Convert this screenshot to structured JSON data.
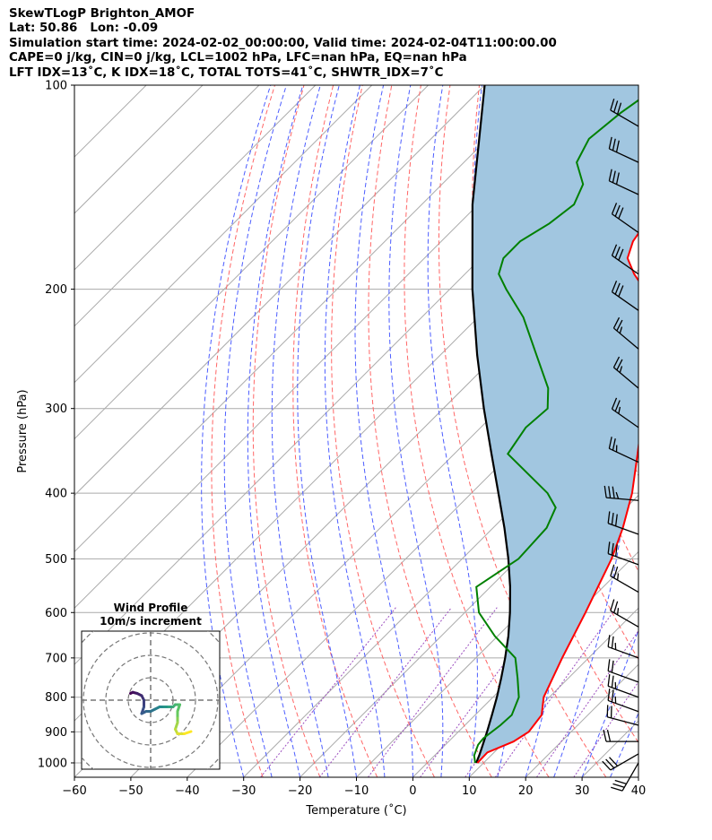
{
  "header": {
    "lines": [
      "SkewTLogP Brighton_AMOF",
      "Lat: 50.86   Lon: -0.09",
      "Simulation start time: 2024-02-02_00:00:00, Valid time: 2024-02-04T11:00:00.00",
      "CAPE=0 j/kg, CIN=0 j/kg, LCL=1002 hPa, LFC=nan hPa, EQ=nan hPa",
      "LFT IDX=13˚C, K IDX=18˚C, TOTAL TOTS=41˚C, SHWTR_IDX=7˚C"
    ]
  },
  "colors": {
    "temperature": "#ff0000",
    "dewpoint": "#008000",
    "parcel": "#000000",
    "cape_fill": "#a1c6e0",
    "dry_adiabats": "#ff6666",
    "moist_adiabats": "#4c5dff",
    "mixing_ratio": "#9b4dbf",
    "isotherms": "#aaaaaa",
    "isobars": "#aaaaaa"
  },
  "chart_data": {
    "type": "skew-t log-p",
    "xlabel": "Temperature (˚C)",
    "ylabel": "Pressure (hPa)",
    "xlim": [
      -60,
      40
    ],
    "ylim": [
      1050,
      100
    ],
    "y_scale": "log",
    "x_ticks": [
      "−60",
      "−50",
      "−40",
      "−30",
      "−20",
      "−10",
      "0",
      "10",
      "20",
      "30",
      "40"
    ],
    "y_ticks": [
      "100",
      "200",
      "300",
      "400",
      "500",
      "600",
      "700",
      "800",
      "900",
      "1000"
    ],
    "grid": true,
    "temperature_profile": [
      [
        1000,
        8.9
      ],
      [
        965,
        8.8
      ],
      [
        930,
        11.5
      ],
      [
        900,
        12.5
      ],
      [
        850,
        11.8
      ],
      [
        800,
        9.0
      ],
      [
        700,
        5.3
      ],
      [
        600,
        1.4
      ],
      [
        500,
        -3.5
      ],
      [
        450,
        -7.0
      ],
      [
        400,
        -11.5
      ],
      [
        350,
        -17.5
      ],
      [
        300,
        -24.5
      ],
      [
        250,
        -33.5
      ],
      [
        220,
        -40.0
      ],
      [
        200,
        -45.5
      ],
      [
        190,
        -50.0
      ],
      [
        180,
        -54.0
      ],
      [
        170,
        -56.0
      ],
      [
        160,
        -57.0
      ],
      [
        150,
        -57.0
      ],
      [
        140,
        -58.0
      ],
      [
        130,
        -59.0
      ],
      [
        115,
        -59.0
      ],
      [
        100,
        -61.0
      ]
    ],
    "dewpoint_profile": [
      [
        1000,
        8.5
      ],
      [
        975,
        7.0
      ],
      [
        940,
        5.8
      ],
      [
        920,
        5.6
      ],
      [
        880,
        6.3
      ],
      [
        850,
        6.5
      ],
      [
        800,
        4.6
      ],
      [
        750,
        1.0
      ],
      [
        700,
        -3.0
      ],
      [
        650,
        -10.5
      ],
      [
        600,
        -17.5
      ],
      [
        550,
        -22.5
      ],
      [
        500,
        -20.0
      ],
      [
        450,
        -20.5
      ],
      [
        420,
        -22.5
      ],
      [
        400,
        -26.5
      ],
      [
        350,
        -40.5
      ],
      [
        320,
        -42.0
      ],
      [
        300,
        -41.5
      ],
      [
        280,
        -45.0
      ],
      [
        250,
        -53.0
      ],
      [
        220,
        -62.0
      ],
      [
        200,
        -70.0
      ],
      [
        190,
        -74.0
      ],
      [
        180,
        -76.0
      ],
      [
        170,
        -76.0
      ],
      [
        160,
        -74.0
      ],
      [
        150,
        -73.0
      ],
      [
        140,
        -75.0
      ],
      [
        130,
        -80.0
      ],
      [
        120,
        -82.0
      ],
      [
        110,
        -81.0
      ],
      [
        100,
        -79.0
      ]
    ],
    "parcel_profile": [
      [
        1000,
        8.7
      ],
      [
        975,
        7.9
      ],
      [
        950,
        7.0
      ],
      [
        900,
        5.1
      ],
      [
        850,
        3.0
      ],
      [
        800,
        0.7
      ],
      [
        750,
        -1.9
      ],
      [
        700,
        -4.8
      ],
      [
        650,
        -8.1
      ],
      [
        600,
        -12.0
      ],
      [
        550,
        -16.5
      ],
      [
        500,
        -21.8
      ],
      [
        450,
        -28.0
      ],
      [
        400,
        -35.2
      ],
      [
        350,
        -43.4
      ],
      [
        300,
        -52.8
      ],
      [
        250,
        -63.5
      ],
      [
        200,
        -76.0
      ],
      [
        150,
        -91.0
      ],
      [
        100,
        -110.0
      ]
    ],
    "wind_barbs": [
      {
        "p": 1000,
        "spd_kt": 30,
        "dir": 210
      },
      {
        "p": 970,
        "spd_kt": 30,
        "dir": 240
      },
      {
        "p": 930,
        "spd_kt": 20,
        "dir": 270
      },
      {
        "p": 880,
        "spd_kt": 20,
        "dir": 285
      },
      {
        "p": 840,
        "spd_kt": 25,
        "dir": 290
      },
      {
        "p": 800,
        "spd_kt": 25,
        "dir": 290
      },
      {
        "p": 760,
        "spd_kt": 20,
        "dir": 290
      },
      {
        "p": 700,
        "spd_kt": 25,
        "dir": 290
      },
      {
        "p": 630,
        "spd_kt": 25,
        "dir": 300
      },
      {
        "p": 560,
        "spd_kt": 25,
        "dir": 300
      },
      {
        "p": 510,
        "spd_kt": 30,
        "dir": 290
      },
      {
        "p": 460,
        "spd_kt": 30,
        "dir": 290
      },
      {
        "p": 410,
        "spd_kt": 35,
        "dir": 275
      },
      {
        "p": 360,
        "spd_kt": 25,
        "dir": 295
      },
      {
        "p": 320,
        "spd_kt": 25,
        "dir": 305
      },
      {
        "p": 280,
        "spd_kt": 25,
        "dir": 310
      },
      {
        "p": 245,
        "spd_kt": 25,
        "dir": 310
      },
      {
        "p": 215,
        "spd_kt": 30,
        "dir": 305
      },
      {
        "p": 190,
        "spd_kt": 30,
        "dir": 305
      },
      {
        "p": 165,
        "spd_kt": 30,
        "dir": 305
      },
      {
        "p": 145,
        "spd_kt": 30,
        "dir": 295
      },
      {
        "p": 130,
        "spd_kt": 30,
        "dir": 295
      },
      {
        "p": 115,
        "spd_kt": 30,
        "dir": 300
      }
    ],
    "hodograph": {
      "title": "Wind Profile",
      "subtitle": "10m/s increment",
      "ring_step_ms": 10,
      "points_uv": [
        [
          -9,
          3
        ],
        [
          -8,
          3.5
        ],
        [
          -6,
          3
        ],
        [
          -4,
          2
        ],
        [
          -3,
          0
        ],
        [
          -3,
          -3
        ],
        [
          -4,
          -6
        ],
        [
          -2,
          -5
        ],
        [
          0,
          -5
        ],
        [
          2,
          -4
        ],
        [
          4,
          -3
        ],
        [
          6,
          -3
        ],
        [
          8,
          -3
        ],
        [
          10,
          -3
        ],
        [
          11,
          -2
        ],
        [
          13,
          -2
        ],
        [
          12,
          -5
        ],
        [
          12,
          -8
        ],
        [
          12,
          -10
        ],
        [
          11,
          -13
        ],
        [
          12,
          -15
        ],
        [
          15,
          -15
        ],
        [
          18,
          -14
        ]
      ]
    }
  }
}
